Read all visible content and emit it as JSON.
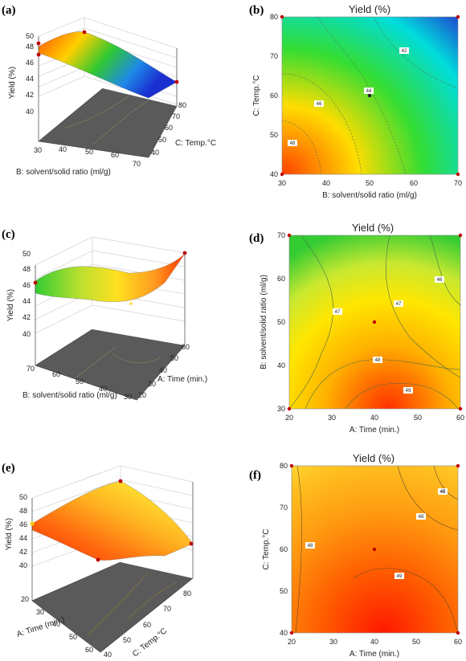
{
  "panels": [
    {
      "id": "a",
      "label": "(a)",
      "kind": "surface",
      "zlabel": "Yield (%)",
      "zticks": [
        "40",
        "42",
        "44",
        "46",
        "48",
        "50"
      ],
      "xlabel": "B: solvent/solid ratio (ml/g)",
      "xticks": [
        "30",
        "40",
        "50",
        "60",
        "70"
      ],
      "ylabel": "C: Temp.°C",
      "yticks": [
        "40",
        "50",
        "60",
        "70",
        "80"
      ],
      "colors": [
        "#ff5500",
        "#ffd000",
        "#30c830",
        "#1e88e8",
        "#1a2fd0"
      ]
    },
    {
      "id": "b",
      "label": "(b)",
      "kind": "contour",
      "title": "Yield (%)",
      "xlabel": "B: solvent/solid ratio (ml/g)",
      "xticks": [
        "30",
        "40",
        "50",
        "60",
        "70"
      ],
      "ylabel": "C: Temp.°C",
      "yticks": [
        "40",
        "50",
        "60",
        "70",
        "80"
      ],
      "contour_labels": [
        "42",
        "44",
        "46",
        "48"
      ],
      "colors": [
        "#ff4000",
        "#ffdd00",
        "#33dd33",
        "#00dddd",
        "#2233cc"
      ]
    },
    {
      "id": "c",
      "label": "(c)",
      "kind": "surface",
      "zlabel": "Yield (%)",
      "zticks": [
        "40",
        "42",
        "44",
        "46",
        "48",
        "50"
      ],
      "xlabel": "B: solvent/solid ratio (ml/g)",
      "xticks": [
        "70",
        "60",
        "50",
        "40",
        "30"
      ],
      "ylabel": "A: Time (min.)",
      "yticks": [
        "20",
        "30",
        "40",
        "50",
        "60"
      ],
      "colors": [
        "#33cc33",
        "#bbe030",
        "#ffe020",
        "#ff9a20",
        "#ff3a00"
      ]
    },
    {
      "id": "d",
      "label": "(d)",
      "kind": "contour",
      "title": "Yield (%)",
      "xlabel": "A: Time (min.)",
      "xticks": [
        "20",
        "30",
        "40",
        "50",
        "60"
      ],
      "ylabel": "B: solvent/solid ratio (ml/g)",
      "yticks": [
        "30",
        "40",
        "50",
        "60",
        "70"
      ],
      "contour_labels": [
        "46",
        "47",
        "47",
        "48",
        "49"
      ],
      "colors": [
        "#ff3000",
        "#ffb000",
        "#ffe600",
        "#c8e830",
        "#33cc33"
      ]
    },
    {
      "id": "e",
      "label": "(e)",
      "kind": "surface",
      "zlabel": "Yield (%)",
      "zticks": [
        "40",
        "42",
        "44",
        "46",
        "48",
        "50"
      ],
      "xlabel": "C: Temp.°C",
      "xticks": [
        "40",
        "50",
        "60",
        "70",
        "80"
      ],
      "ylabel": "A: Time (min.)",
      "yticks": [
        "20",
        "30",
        "40",
        "50",
        "60"
      ],
      "colors": [
        "#ff2a00",
        "#ff6e10",
        "#ffb020",
        "#ffe030",
        "#a0e040"
      ]
    },
    {
      "id": "f",
      "label": "(f)",
      "kind": "contour",
      "title": "Yield (%)",
      "xlabel": "A: Time (min.)",
      "xticks": [
        "20",
        "30",
        "40",
        "50",
        "60"
      ],
      "ylabel": "C: Temp.°C",
      "yticks": [
        "40",
        "50",
        "60",
        "70",
        "80"
      ],
      "contour_labels": [
        "46",
        "47",
        "48",
        "48",
        "49"
      ],
      "colors": [
        "#ff1800",
        "#ff5a00",
        "#ff9a10",
        "#ffc020",
        "#ffe23a"
      ]
    }
  ],
  "chart_data": [
    {
      "type": "surface",
      "title": "",
      "xlabel": "B: solvent/solid ratio (ml/g)",
      "ylabel": "C: Temp.°C",
      "zlabel": "Yield (%)",
      "xlim": [
        30,
        70
      ],
      "ylim": [
        40,
        80
      ],
      "zlim": [
        40,
        50
      ],
      "design_points": [
        {
          "x": 30,
          "y": 40,
          "z": 49.0
        },
        {
          "x": 30,
          "y": 80,
          "z": 48.0
        },
        {
          "x": 70,
          "y": 80,
          "z": 40.5
        },
        {
          "x": 70,
          "y": 40,
          "z": 43.0
        }
      ]
    },
    {
      "type": "contour",
      "title": "Yield (%)",
      "xlabel": "B: solvent/solid ratio (ml/g)",
      "ylabel": "C: Temp.°C",
      "xlim": [
        30,
        70
      ],
      "ylim": [
        40,
        80
      ],
      "levels": [
        42,
        44,
        46,
        48
      ],
      "center_point": {
        "x": 50,
        "y": 60
      }
    },
    {
      "type": "surface",
      "title": "",
      "xlabel": "B: solvent/solid ratio (ml/g)",
      "ylabel": "A: Time (min.)",
      "zlabel": "Yield (%)",
      "xlim": [
        30,
        70
      ],
      "ylim": [
        20,
        60
      ],
      "zlim": [
        40,
        50
      ],
      "design_points": [
        {
          "x": 70,
          "y": 20,
          "z": 46.5
        },
        {
          "x": 30,
          "y": 60,
          "z": 49.8
        },
        {
          "x": 50,
          "y": 40,
          "z": 45.0
        }
      ]
    },
    {
      "type": "contour",
      "title": "Yield (%)",
      "xlabel": "A: Time (min.)",
      "ylabel": "B: solvent/solid ratio (ml/g)",
      "xlim": [
        20,
        60
      ],
      "ylim": [
        30,
        70
      ],
      "levels": [
        46,
        47,
        47,
        48,
        49
      ],
      "center_point": {
        "x": 40,
        "y": 50
      }
    },
    {
      "type": "surface",
      "title": "",
      "xlabel": "C: Temp.°C",
      "ylabel": "A: Time (min.)",
      "zlabel": "Yield (%)",
      "xlim": [
        40,
        80
      ],
      "ylim": [
        20,
        60
      ],
      "zlim": [
        40,
        50
      ],
      "design_points": [
        {
          "x": 40,
          "y": 20,
          "z": 46.0
        },
        {
          "x": 80,
          "y": 20,
          "z": 50.0
        },
        {
          "x": 40,
          "y": 60,
          "z": 42.5
        },
        {
          "x": 80,
          "y": 60,
          "z": 44.0
        }
      ]
    },
    {
      "type": "contour",
      "title": "Yield (%)",
      "xlabel": "A: Time (min.)",
      "ylabel": "C: Temp.°C",
      "xlim": [
        20,
        60
      ],
      "ylim": [
        40,
        80
      ],
      "levels": [
        46,
        47,
        48,
        48,
        49
      ],
      "center_point": {
        "x": 40,
        "y": 60
      }
    }
  ]
}
